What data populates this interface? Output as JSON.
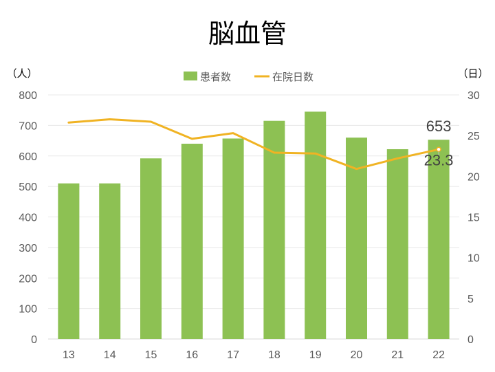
{
  "chart_data": {
    "type": "bar",
    "title": "脳血管",
    "categories": [
      "13",
      "14",
      "15",
      "16",
      "17",
      "18",
      "19",
      "20",
      "21",
      "22"
    ],
    "series": [
      {
        "name": "患者数",
        "type": "bar",
        "axis": "left",
        "color": "#8DC153",
        "values": [
          510,
          510,
          592,
          640,
          657,
          715,
          745,
          660,
          622,
          653
        ]
      },
      {
        "name": "在院日数",
        "type": "line",
        "axis": "right",
        "color": "#F0B323",
        "values": [
          26.6,
          27.0,
          26.7,
          24.6,
          25.3,
          22.9,
          22.8,
          20.9,
          22.2,
          23.3
        ]
      }
    ],
    "y_left": {
      "unit_label": "（人）",
      "min": 0,
      "max": 800,
      "step": 100
    },
    "y_right": {
      "unit_label": "（日）",
      "min": 0,
      "max": 30,
      "step": 5
    },
    "data_labels": [
      {
        "series": "患者数",
        "category": "22",
        "text": "653"
      },
      {
        "series": "在院日数",
        "category": "22",
        "text": "23.3"
      }
    ],
    "legend_position": "top",
    "grid": true
  }
}
